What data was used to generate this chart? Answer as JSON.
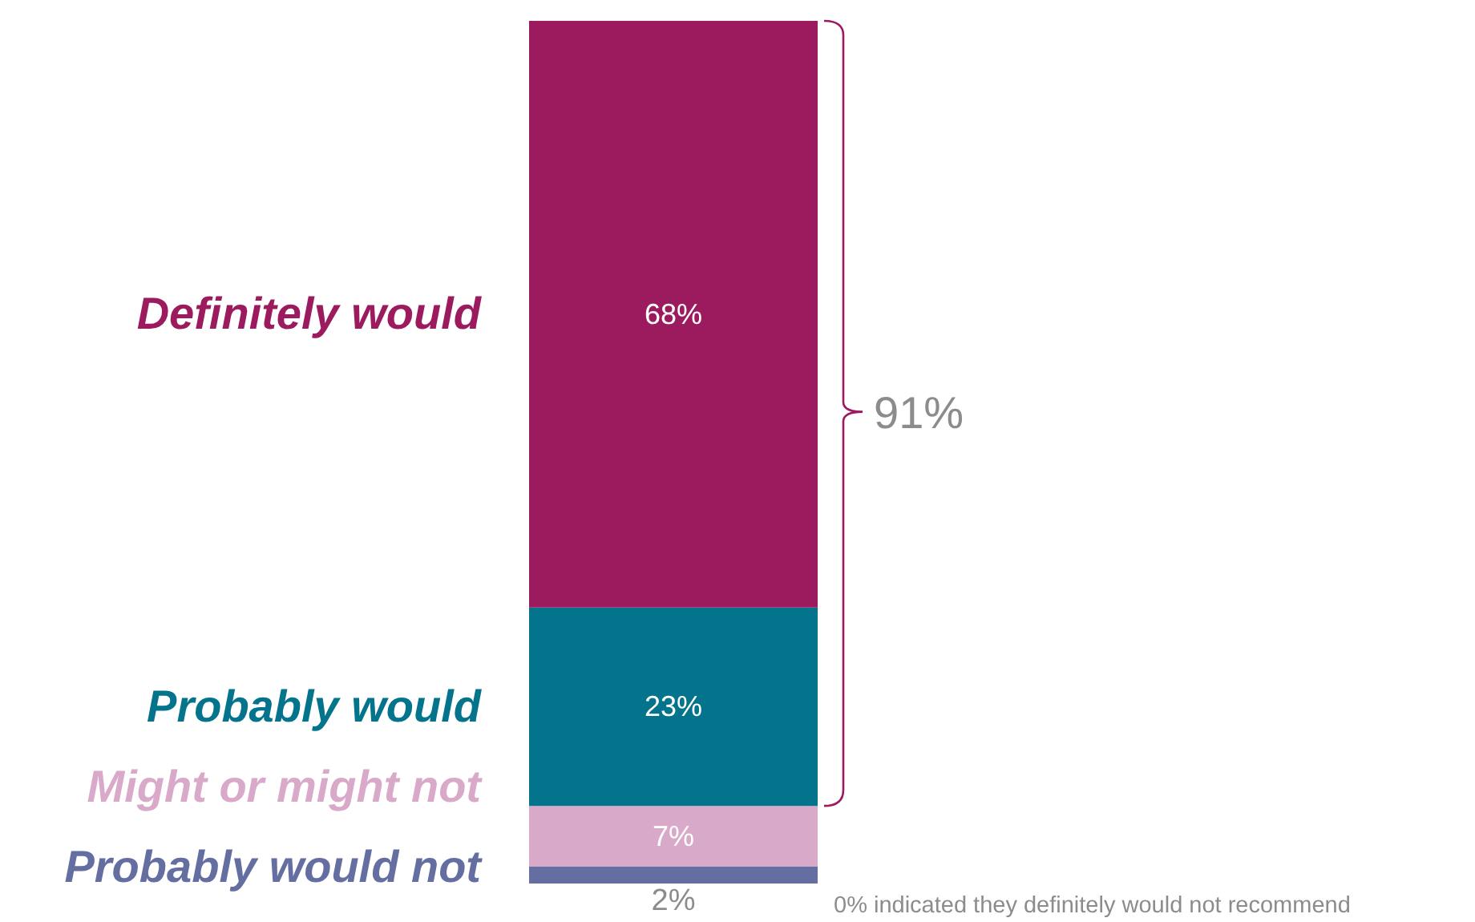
{
  "chart_data": {
    "type": "bar",
    "stacked": true,
    "categories": [
      null
    ],
    "legend": false,
    "series": [
      {
        "name": "Probably would not",
        "color": "#646ea0",
        "values": [
          2
        ],
        "value_labels": [
          "2%"
        ]
      },
      {
        "name": "Might or might not",
        "color": "#d8a9c8",
        "values": [
          7
        ],
        "value_labels": [
          "7%"
        ]
      },
      {
        "name": "Probably would",
        "color": "#04738c",
        "values": [
          23
        ],
        "value_labels": [
          "23%"
        ]
      },
      {
        "name": "Definitely would",
        "color": "#9c1b5f",
        "values": [
          68
        ],
        "value_labels": [
          "68%"
        ]
      }
    ],
    "annotations": [
      "91%",
      "0% indicated they definitely would not recommend"
    ]
  }
}
